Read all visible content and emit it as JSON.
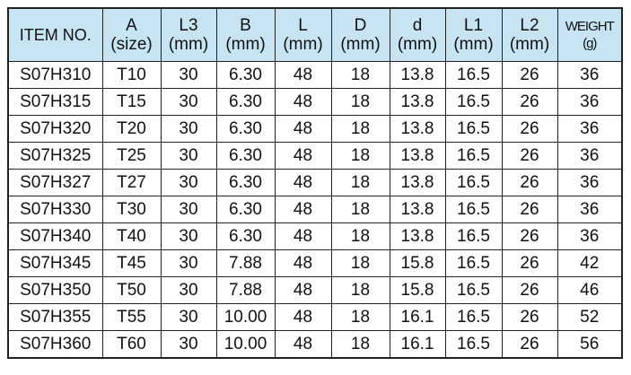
{
  "table": {
    "header": [
      {
        "label": "ITEM NO."
      },
      {
        "label": "A",
        "unit": "(size)"
      },
      {
        "label": "L3",
        "unit": "(mm)"
      },
      {
        "label": "B",
        "unit": "(mm)"
      },
      {
        "label": "L",
        "unit": "(mm)"
      },
      {
        "label": "D",
        "unit": "(mm)"
      },
      {
        "label": "d",
        "unit": "(mm)"
      },
      {
        "label": "L1",
        "unit": "(mm)"
      },
      {
        "label": "L2",
        "unit": "(mm)"
      },
      {
        "label": "WEIGHT",
        "unit": "(g)"
      }
    ],
    "rows": [
      [
        "S07H310",
        "T10",
        "30",
        "6.30",
        "48",
        "18",
        "13.8",
        "16.5",
        "26",
        "36"
      ],
      [
        "S07H315",
        "T15",
        "30",
        "6.30",
        "48",
        "18",
        "13.8",
        "16.5",
        "26",
        "36"
      ],
      [
        "S07H320",
        "T20",
        "30",
        "6.30",
        "48",
        "18",
        "13.8",
        "16.5",
        "26",
        "36"
      ],
      [
        "S07H325",
        "T25",
        "30",
        "6.30",
        "48",
        "18",
        "13.8",
        "16.5",
        "26",
        "36"
      ],
      [
        "S07H327",
        "T27",
        "30",
        "6.30",
        "48",
        "18",
        "13.8",
        "16.5",
        "26",
        "36"
      ],
      [
        "S07H330",
        "T30",
        "30",
        "6.30",
        "48",
        "18",
        "13.8",
        "16.5",
        "26",
        "36"
      ],
      [
        "S07H340",
        "T40",
        "30",
        "6.30",
        "48",
        "18",
        "13.8",
        "16.5",
        "26",
        "36"
      ],
      [
        "S07H345",
        "T45",
        "30",
        "7.88",
        "48",
        "18",
        "15.8",
        "16.5",
        "26",
        "42"
      ],
      [
        "S07H350",
        "T50",
        "30",
        "7.88",
        "48",
        "18",
        "15.8",
        "16.5",
        "26",
        "46"
      ],
      [
        "S07H355",
        "T55",
        "30",
        "10.00",
        "48",
        "18",
        "16.1",
        "16.5",
        "26",
        "52"
      ],
      [
        "S07H360",
        "T60",
        "30",
        "10.00",
        "48",
        "18",
        "16.1",
        "16.5",
        "26",
        "56"
      ]
    ]
  }
}
